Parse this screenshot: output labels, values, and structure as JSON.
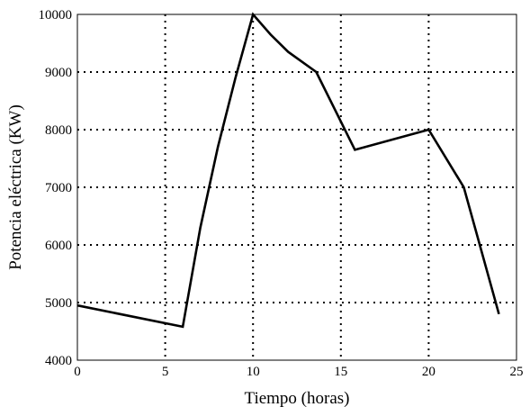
{
  "chart_data": {
    "type": "line",
    "title": "",
    "xlabel": "Tiempo (horas)",
    "ylabel": "Potencia eléctrica (KW)",
    "xlim": [
      0,
      25
    ],
    "ylim": [
      4000,
      10000
    ],
    "xticks": [
      0,
      5,
      10,
      15,
      20,
      25
    ],
    "yticks": [
      4000,
      5000,
      6000,
      7000,
      8000,
      9000,
      10000
    ],
    "xtick_labels": [
      "0",
      "5",
      "10",
      "15",
      "20",
      "25"
    ],
    "ytick_labels": [
      "4000",
      "5000",
      "6000",
      "7000",
      "8000",
      "9000",
      "10000"
    ],
    "grid": true,
    "grid_style": "dotted",
    "series": [
      {
        "color": "#000000",
        "x": [
          0,
          6,
          7,
          8,
          9,
          10,
          11,
          12,
          13.6,
          15.8,
          20,
          22,
          24
        ],
        "y": [
          4950,
          4580,
          6300,
          7700,
          8900,
          10000,
          9650,
          9350,
          9000,
          7650,
          8000,
          7000,
          4800
        ]
      }
    ]
  }
}
